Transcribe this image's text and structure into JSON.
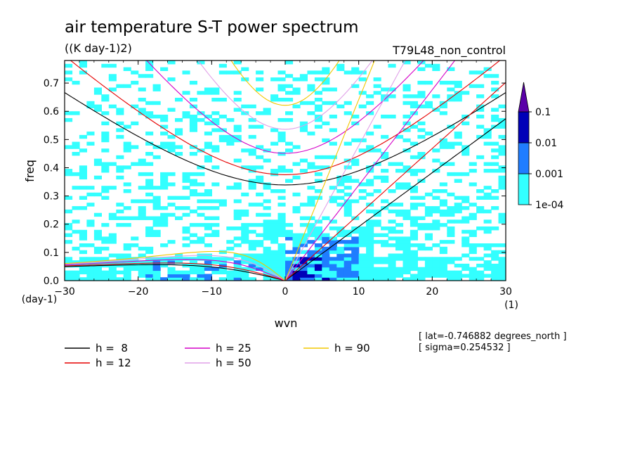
{
  "chart_data": {
    "type": "heatmap",
    "title": "air temperature S-T power spectrum",
    "subtitle": "((K day-1)2)",
    "run_label": "T79L48_non_control",
    "xlabel": "wvn",
    "ylabel": "freq",
    "x_unit": "(1)",
    "y_unit": "(day-1)",
    "xlim": [
      -30,
      30
    ],
    "ylim": [
      0,
      0.78
    ],
    "x_ticks": [
      -30,
      -20,
      -10,
      0,
      10,
      20,
      30
    ],
    "y_ticks": [
      0.0,
      0.1,
      0.2,
      0.3,
      0.4,
      0.5,
      0.6,
      0.7
    ],
    "y_tick_labels": [
      "0.0",
      "0.1",
      "0.2",
      "0.3",
      "0.4",
      "0.5",
      "0.6",
      "0.7"
    ],
    "colorbar": {
      "levels": [
        "1e-04",
        "0.001",
        "0.01",
        "0.1"
      ],
      "colors": [
        "#33ffff",
        "#1f7dff",
        "#0000b8",
        "#5a00a8"
      ]
    },
    "dispersion_curves": [
      {
        "label": "h =  8",
        "h": 8,
        "color": "#000000"
      },
      {
        "label": "h = 12",
        "h": 12,
        "color": "#e60000"
      },
      {
        "label": "h = 25",
        "h": 25,
        "color": "#d400c8"
      },
      {
        "label": "h = 50",
        "h": 50,
        "color": "#e0a0e8"
      },
      {
        "label": "h = 90",
        "h": 90,
        "color": "#f2c800"
      }
    ],
    "notes": [
      "[ lat=-0.746882 degrees_north ]",
      "[ sigma=0.254532 ]"
    ]
  }
}
